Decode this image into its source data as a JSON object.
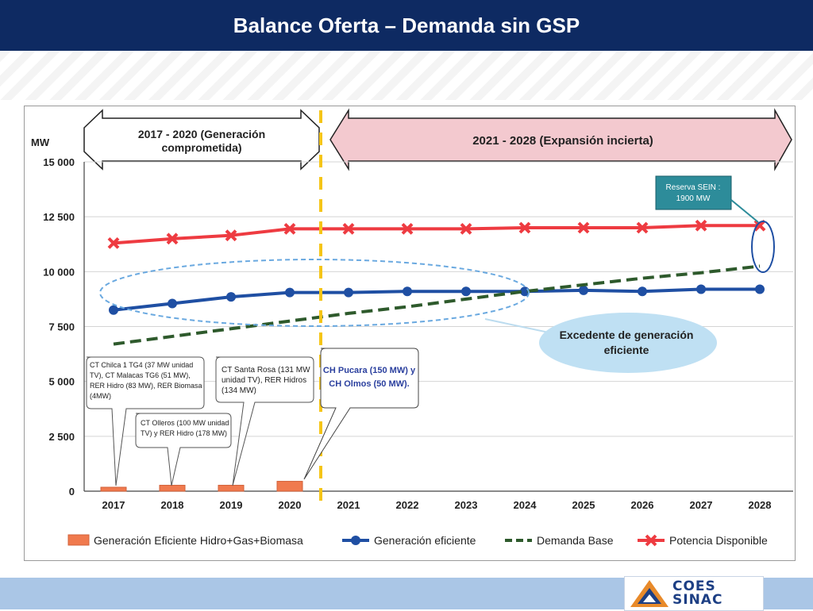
{
  "header": {
    "title": "Balance Oferta – Demanda sin GSP"
  },
  "logo": {
    "line1": "COES",
    "line2": "SINAC"
  },
  "chart_data": {
    "type": "line",
    "ylabel": "MW",
    "ylim": [
      0,
      15000
    ],
    "yticks": [
      0,
      2500,
      5000,
      7500,
      10000,
      12500,
      15000
    ],
    "ytick_labels": [
      "0",
      "2 500",
      "5 000",
      "7 500",
      "10 000",
      "12 500",
      "15 000"
    ],
    "categories": [
      "2017",
      "2018",
      "2019",
      "2020",
      "2021",
      "2022",
      "2023",
      "2024",
      "2025",
      "2026",
      "2027",
      "2028"
    ],
    "series": [
      {
        "name": "Generación Eficiente Hidro+Gas+Biomasa",
        "kind": "bar",
        "color": "#f07a4e",
        "values": [
          180,
          270,
          270,
          450,
          null,
          null,
          null,
          null,
          null,
          null,
          null,
          null
        ]
      },
      {
        "name": "Generación eficiente",
        "kind": "line",
        "color": "#1f4fa3",
        "values": [
          8250,
          8550,
          8850,
          9050,
          9050,
          9100,
          9100,
          9100,
          9150,
          9100,
          9200,
          9200
        ]
      },
      {
        "name": "Demanda Base",
        "kind": "dashed",
        "color": "#2e5a2c",
        "values": [
          6700,
          7050,
          7400,
          7750,
          8100,
          8400,
          8750,
          9100,
          9400,
          9700,
          9950,
          10250
        ]
      },
      {
        "name": "Potencia Disponible",
        "kind": "line-x",
        "color": "#ee3b41",
        "values": [
          11300,
          11500,
          11650,
          11950,
          11950,
          11950,
          11950,
          12000,
          12000,
          12000,
          12100,
          12100
        ]
      }
    ],
    "periods": [
      {
        "label": "2017 - 2020 (Generación comprometida)",
        "line1": "2017 - 2020 (Generación",
        "line2": "comprometida)"
      },
      {
        "label": "2021 - 2028 (Expansión incierta)"
      }
    ],
    "annotations": {
      "reserva": {
        "line1": "Reserva SEIN :",
        "line2": "1900 MW"
      },
      "excedente": {
        "line1": "Excedente de generación",
        "line2": "eficiente"
      },
      "box1": [
        "CT Chilca 1 TG4 (37 MW unidad",
        "TV), CT Malacas TG6 (51 MW),",
        "RER Hidro (83 MW), RER Biomasa",
        "(4MW)"
      ],
      "box2": [
        "CT Olleros (100 MW unidad",
        "TV) y RER Hidro (178 MW)"
      ],
      "box3": [
        "CT Santa Rosa (131 MW",
        "unidad TV), RER Hidros",
        "(134 MW)"
      ],
      "box4": [
        "CH Pucara (150 MW) y",
        "CH Olmos (50 MW)."
      ]
    }
  }
}
